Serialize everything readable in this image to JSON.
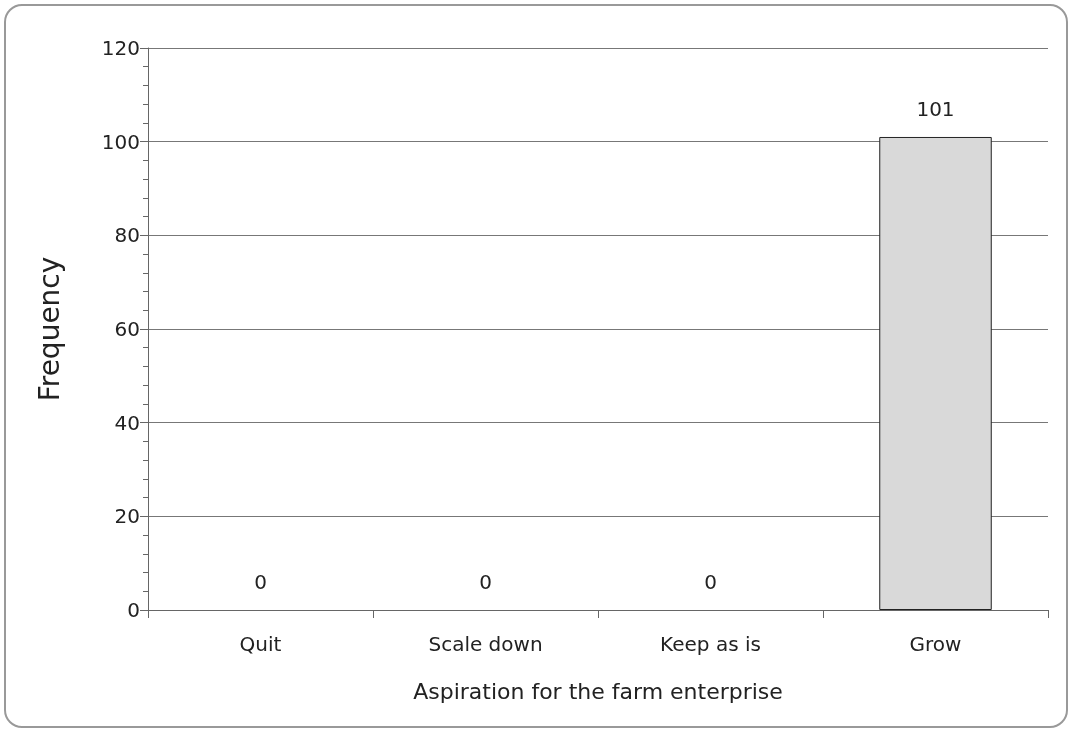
{
  "chart_data": {
    "type": "bar",
    "xlabel": "Aspiration for the farm enterprise",
    "ylabel": "Frequency",
    "categories": [
      "Quit",
      "Scale down",
      "Keep as is",
      "Grow"
    ],
    "values": [
      0,
      0,
      0,
      101
    ],
    "color": "#d9d9d9",
    "ylim": [
      0,
      120
    ],
    "yticks": [
      0,
      20,
      40,
      60,
      80,
      100,
      120
    ],
    "grid": "y",
    "data_labels": true
  }
}
